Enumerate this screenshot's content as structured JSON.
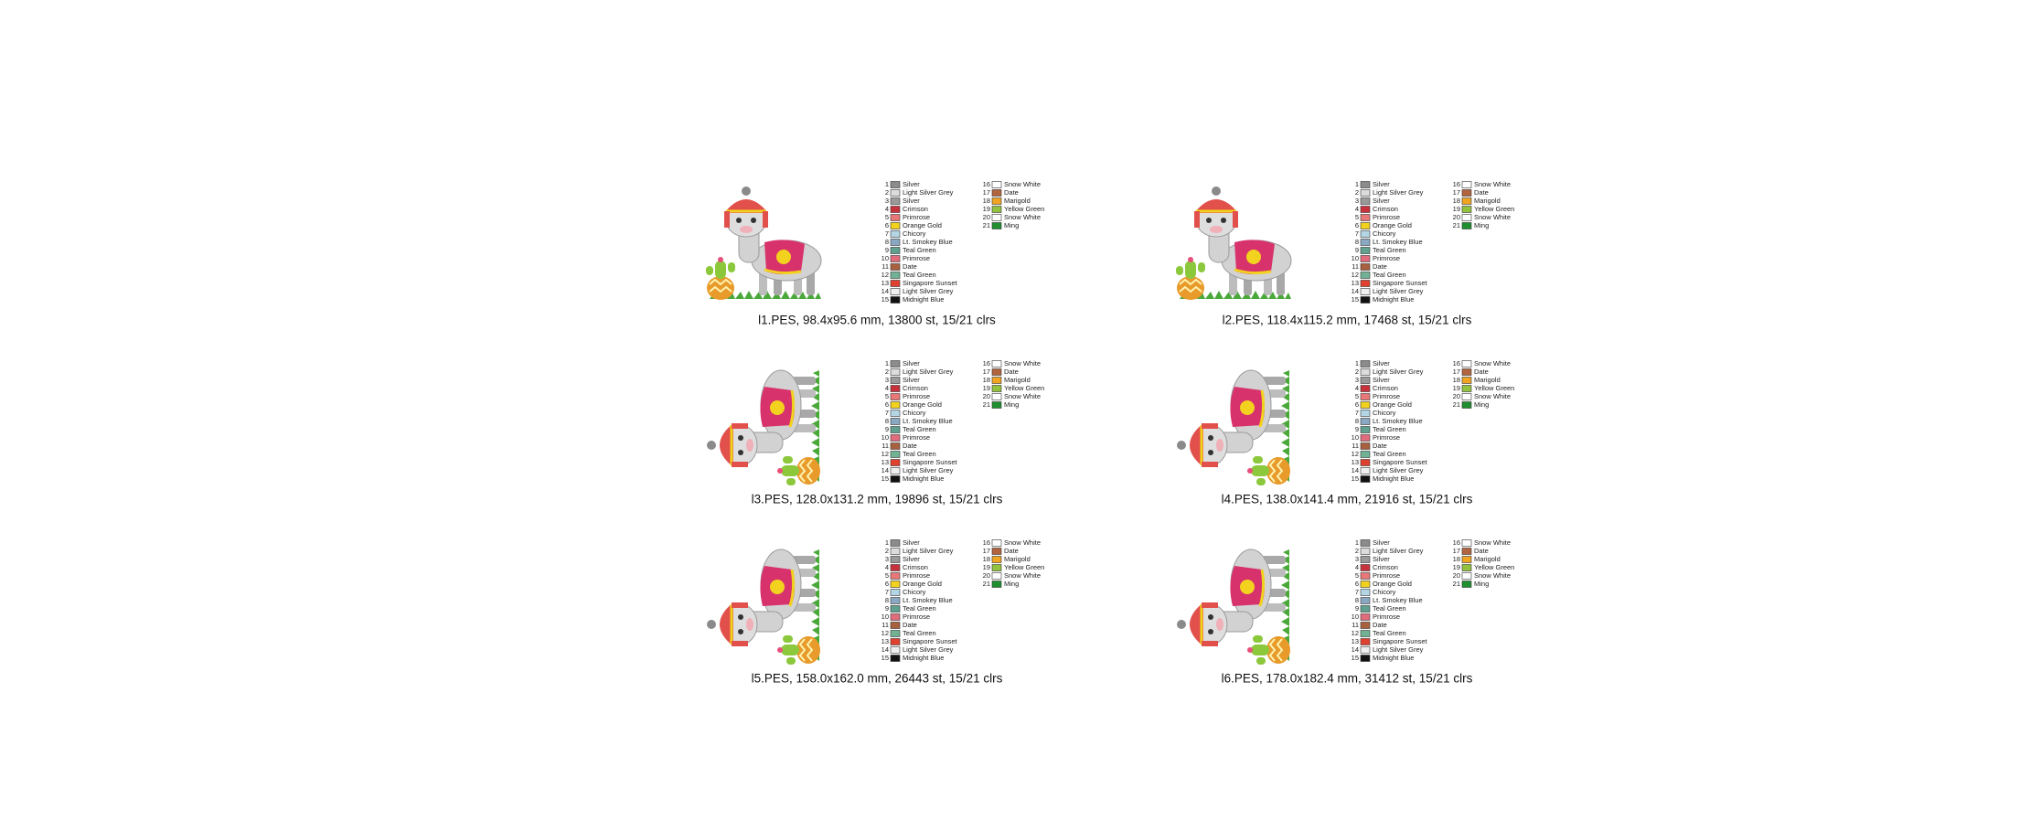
{
  "designs": [
    {
      "caption": "l1.PES, 98.4x95.6 mm, 13800 st, 15/21 clrs",
      "orientation": "upright"
    },
    {
      "caption": "l2.PES, 118.4x115.2 mm, 17468 st, 15/21 clrs",
      "orientation": "upright"
    },
    {
      "caption": "l3.PES, 128.0x131.2 mm, 19896 st, 15/21 clrs",
      "orientation": "rotated"
    },
    {
      "caption": "l4.PES, 138.0x141.4 mm, 21916 st, 15/21 clrs",
      "orientation": "rotated"
    },
    {
      "caption": "l5.PES, 158.0x162.0 mm, 26443 st, 15/21 clrs",
      "orientation": "rotated"
    },
    {
      "caption": "l6.PES, 178.0x182.4 mm, 31412 st, 15/21 clrs",
      "orientation": "rotated"
    }
  ],
  "thread_colors": [
    {
      "number": "1",
      "name": "Silver",
      "color": "#8c8c8c"
    },
    {
      "number": "2",
      "name": "Light Silver Grey",
      "color": "#dcdcdc"
    },
    {
      "number": "3",
      "name": "Silver",
      "color": "#9a9a9a"
    },
    {
      "number": "4",
      "name": "Crimson",
      "color": "#c8323c"
    },
    {
      "number": "5",
      "name": "Primrose",
      "color": "#e87878"
    },
    {
      "number": "6",
      "name": "Orange Gold",
      "color": "#f2d21e"
    },
    {
      "number": "7",
      "name": "Chicory",
      "color": "#b4d6e4"
    },
    {
      "number": "8",
      "name": "Lt. Smokey Blue",
      "color": "#8aa8c2"
    },
    {
      "number": "9",
      "name": "Teal Green",
      "color": "#5fa08e"
    },
    {
      "number": "10",
      "name": "Primrose",
      "color": "#e06c7c"
    },
    {
      "number": "11",
      "name": "Date",
      "color": "#a8603e"
    },
    {
      "number": "12",
      "name": "Teal Green",
      "color": "#72b294"
    },
    {
      "number": "13",
      "name": "Singapore Sunset",
      "color": "#e0402e"
    },
    {
      "number": "14",
      "name": "Light Silver Grey",
      "color": "#efefef"
    },
    {
      "number": "15",
      "name": "Midnight Blue",
      "color": "#111111"
    },
    {
      "number": "16",
      "name": "Snow White",
      "color": "#ffffff"
    },
    {
      "number": "17",
      "name": "Date",
      "color": "#b2643e"
    },
    {
      "number": "18",
      "name": "Marigold",
      "color": "#f0a422"
    },
    {
      "number": "19",
      "name": "Yellow Green",
      "color": "#92c23e"
    },
    {
      "number": "20",
      "name": "Snow White",
      "color": "#ffffff"
    },
    {
      "number": "21",
      "name": "Ming",
      "color": "#1f8f30"
    }
  ]
}
